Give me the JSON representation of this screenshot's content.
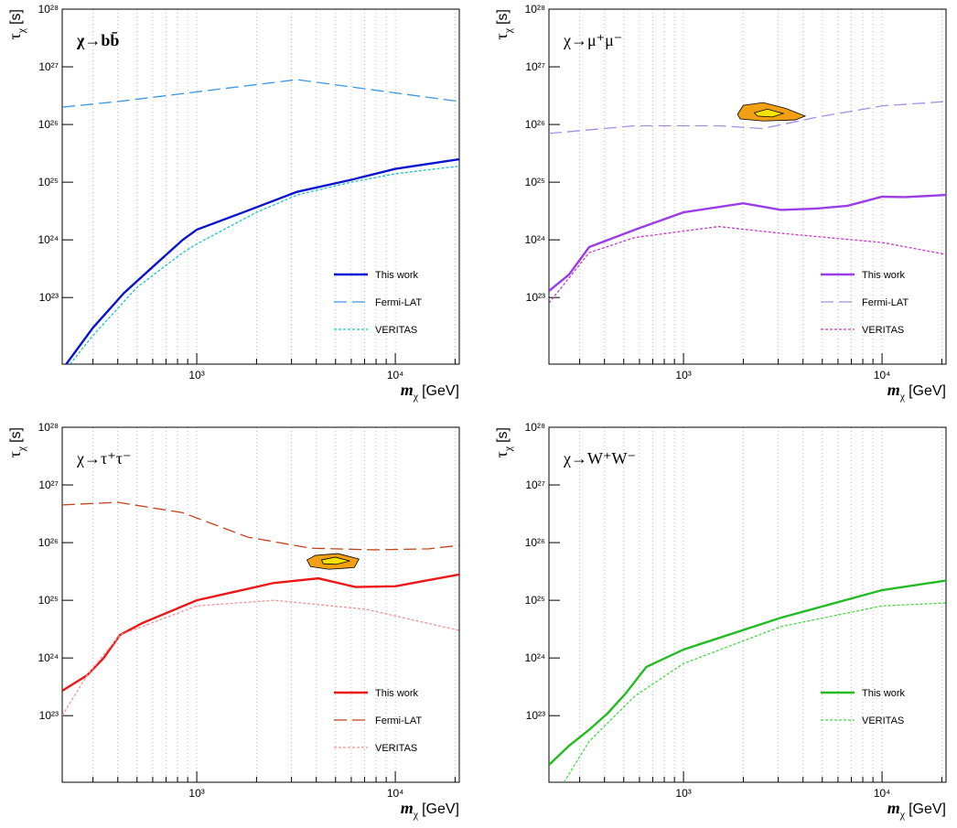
{
  "chart_data": [
    {
      "type": "line",
      "title": "χ→bb̄",
      "xlog": true,
      "ylog": true,
      "grid": "x",
      "legend": "lower right",
      "xlabel": {
        "symbol": "m",
        "sub": "χ",
        "unit": "[GeV]"
      },
      "ylabel": {
        "symbol": "τ",
        "sub": "χ",
        "unit": "[s]"
      },
      "xlim": [
        210,
        21000
      ],
      "ylim": [
        7e+21,
        1e+28
      ],
      "xticks": [
        {
          "value": 1000,
          "label": "10³"
        },
        {
          "value": 10000,
          "label": "10⁴"
        }
      ],
      "xminorticks": [
        300,
        400,
        500,
        600,
        700,
        800,
        900,
        2000,
        3000,
        4000,
        5000,
        6000,
        7000,
        8000,
        9000,
        20000
      ],
      "yticks": [
        {
          "value": 1e+23,
          "label": "10²³"
        },
        {
          "value": 1e+24,
          "label": "10²⁴"
        },
        {
          "value": 1e+25,
          "label": "10²⁵"
        },
        {
          "value": 1e+26,
          "label": "10²⁶"
        },
        {
          "value": 1e+27,
          "label": "10²⁷"
        },
        {
          "value": 1e+28,
          "label": "10²⁸"
        }
      ],
      "series": [
        {
          "name": "This work",
          "color": "#0a14d0",
          "style": "solid",
          "x": [
            220,
            300,
            430,
            600,
            850,
            1000,
            1800,
            3200,
            6000,
            10000,
            21000
          ],
          "values": [
            7e+21,
            3e+22,
            1.2e+23,
            3.4e+23,
            1e+24,
            1.5e+24,
            3.2e+24,
            6.8e+24,
            1.1e+25,
            1.7e+25,
            2.5e+25
          ]
        },
        {
          "name": "Fermi-LAT",
          "color": "#3a96e8",
          "style": "dashed",
          "x": [
            210,
            400,
            3200,
            21000
          ],
          "values": [
            2e+26,
            2.5e+26,
            6e+26,
            2.5e+26
          ]
        },
        {
          "name": "VERITAS",
          "color": "#19c2c8",
          "style": "dotted",
          "x": [
            230,
            300,
            500,
            850,
            1000,
            2000,
            3200,
            6000,
            10000,
            21000
          ],
          "values": [
            7e+21,
            2.2e+22,
            1.5e+23,
            6e+23,
            8.5e+23,
            3e+24,
            6e+24,
            1e+25,
            1.4e+25,
            1.9e+25
          ]
        }
      ]
    },
    {
      "type": "line",
      "title": "χ→μ⁺μ⁻",
      "xlog": true,
      "ylog": true,
      "grid": "x",
      "legend": "lower right",
      "xlabel": {
        "symbol": "m",
        "sub": "χ",
        "unit": "[GeV]"
      },
      "ylabel": {
        "symbol": "τ",
        "sub": "χ",
        "unit": "[s]"
      },
      "xlim": [
        210,
        21000
      ],
      "ylim": [
        7e+21,
        1e+28
      ],
      "xticks": [
        {
          "value": 1000,
          "label": "10³"
        },
        {
          "value": 10000,
          "label": "10⁴"
        }
      ],
      "xminorticks": [
        300,
        400,
        500,
        600,
        700,
        800,
        900,
        2000,
        3000,
        4000,
        5000,
        6000,
        7000,
        8000,
        9000,
        20000
      ],
      "yticks": [
        {
          "value": 1e+23,
          "label": "10²³"
        },
        {
          "value": 1e+24,
          "label": "10²⁴"
        },
        {
          "value": 1e+25,
          "label": "10²⁵"
        },
        {
          "value": 1e+26,
          "label": "10²⁶"
        },
        {
          "value": 1e+27,
          "label": "10²⁷"
        },
        {
          "value": 1e+28,
          "label": "10²⁸"
        }
      ],
      "series": [
        {
          "name": "This work",
          "color": "#9b3ce8",
          "style": "solid",
          "x": [
            210,
            265,
            335,
            570,
            1000,
            2000,
            3100,
            4750,
            6700,
            10000,
            13000,
            21000
          ],
          "values": [
            1.3e+23,
            2.5e+23,
            7.5e+23,
            1.5e+24,
            3e+24,
            4.3e+24,
            3.3e+24,
            3.5e+24,
            3.9e+24,
            5.6e+24,
            5.5e+24,
            6e+24
          ]
        },
        {
          "name": "Fermi-LAT",
          "color": "#a98ce8",
          "style": "dashed",
          "x": [
            210,
            570,
            1500,
            2500,
            4750,
            10000,
            21000
          ],
          "values": [
            7e+25,
            9.5e+25,
            9.5e+25,
            8.5e+25,
            1.35e+26,
            2.1e+26,
            2.5e+26
          ]
        },
        {
          "name": "VERITAS",
          "color": "#c83ac8",
          "style": "dotted",
          "x": [
            210,
            335,
            570,
            1500,
            3100,
            10000,
            21000
          ],
          "values": [
            8e+22,
            6e+23,
            1.1e+24,
            1.7e+24,
            1.3e+24,
            9e+23,
            5.6e+23
          ]
        }
      ],
      "regions": [
        {
          "color": "#f0a012",
          "x": [
            1870,
            2000,
            2520,
            3280,
            4100,
            3650,
            2520,
            1930
          ],
          "values": [
            1.5e+26,
            2.15e+26,
            2.4e+26,
            1.9e+26,
            1.4e+26,
            1.2e+26,
            1.15e+26,
            1.25e+26
          ]
        },
        {
          "color": "#f5e400",
          "x": [
            2270,
            2650,
            3180,
            2800,
            2360
          ],
          "values": [
            1.6e+26,
            1.85e+26,
            1.55e+26,
            1.35e+26,
            1.4e+26
          ]
        }
      ]
    },
    {
      "type": "line",
      "title": "χ→τ⁺τ⁻",
      "xlog": true,
      "ylog": true,
      "grid": "x",
      "legend": "lower right",
      "xlabel": {
        "symbol": "m",
        "sub": "χ",
        "unit": "[GeV]"
      },
      "ylabel": {
        "symbol": "τ",
        "sub": "χ",
        "unit": "[s]"
      },
      "xlim": [
        210,
        21000
      ],
      "ylim": [
        7e+21,
        1e+28
      ],
      "xticks": [
        {
          "value": 1000,
          "label": "10³"
        },
        {
          "value": 10000,
          "label": "10⁴"
        }
      ],
      "xminorticks": [
        300,
        400,
        500,
        600,
        700,
        800,
        900,
        2000,
        3000,
        4000,
        5000,
        6000,
        7000,
        8000,
        9000,
        20000
      ],
      "yticks": [
        {
          "value": 1e+23,
          "label": "10²³"
        },
        {
          "value": 1e+24,
          "label": "10²⁴"
        },
        {
          "value": 1e+25,
          "label": "10²⁵"
        },
        {
          "value": 1e+26,
          "label": "10²⁶"
        },
        {
          "value": 1e+27,
          "label": "10²⁷"
        },
        {
          "value": 1e+28,
          "label": "10²⁸"
        }
      ],
      "series": [
        {
          "name": "This work",
          "color": "#ec1616",
          "style": "solid",
          "x": [
            210,
            280,
            340,
            410,
            530,
            1000,
            2450,
            4100,
            6300,
            10000,
            13300,
            21000
          ],
          "values": [
            2.7e+23,
            5e+23,
            1e+24,
            2.5e+24,
            4e+24,
            1e+25,
            2e+25,
            2.4e+25,
            1.7e+25,
            1.75e+25,
            2.1e+25,
            2.8e+25
          ]
        },
        {
          "name": "Fermi-LAT",
          "color": "#c8401a",
          "style": "dashed",
          "x": [
            210,
            400,
            850,
            1800,
            3750,
            7800,
            14800,
            21000
          ],
          "values": [
            4.5e+26,
            5e+26,
            3.3e+26,
            1.25e+26,
            8e+25,
            7.5e+25,
            7.8e+25,
            9e+25
          ]
        },
        {
          "name": "VERITAS",
          "color": "#f09494",
          "style": "dotted",
          "x": [
            210,
            220,
            280,
            410,
            1000,
            2450,
            7100,
            21000
          ],
          "values": [
            1e+23,
            1.3e+23,
            5e+23,
            2.5e+24,
            8e+24,
            1e+25,
            7e+24,
            3e+24
          ]
        }
      ],
      "regions": [
        {
          "color": "#f0a012",
          "x": [
            3590,
            3950,
            5140,
            6560,
            6220,
            4630,
            3740
          ],
          "values": [
            5e+25,
            6e+25,
            6.45e+25,
            5.2e+25,
            3.7e+25,
            3.45e+25,
            3.85e+25
          ]
        },
        {
          "color": "#f5e400",
          "x": [
            4250,
            4980,
            5900,
            5030,
            4340
          ],
          "values": [
            5e+25,
            5.6e+25,
            4.8e+25,
            4.2e+25,
            4.3e+25
          ]
        }
      ]
    },
    {
      "type": "line",
      "title": "χ→W⁺W⁻",
      "xlog": true,
      "ylog": true,
      "grid": "x",
      "legend": "lower right",
      "xlabel": {
        "symbol": "m",
        "sub": "χ",
        "unit": "[GeV]"
      },
      "ylabel": {
        "symbol": "τ",
        "sub": "χ",
        "unit": "[s]"
      },
      "xlim": [
        210,
        21000
      ],
      "ylim": [
        7e+21,
        1e+28
      ],
      "xticks": [
        {
          "value": 1000,
          "label": "10³"
        },
        {
          "value": 10000,
          "label": "10⁴"
        }
      ],
      "xminorticks": [
        300,
        400,
        500,
        600,
        700,
        800,
        900,
        2000,
        3000,
        4000,
        5000,
        6000,
        7000,
        8000,
        9000,
        20000
      ],
      "yticks": [
        {
          "value": 1e+23,
          "label": "10²³"
        },
        {
          "value": 1e+24,
          "label": "10²⁴"
        },
        {
          "value": 1e+25,
          "label": "10²⁵"
        },
        {
          "value": 1e+26,
          "label": "10²⁶"
        },
        {
          "value": 1e+27,
          "label": "10²⁷"
        },
        {
          "value": 1e+28,
          "label": "10²⁸"
        }
      ],
      "series": [
        {
          "name": "This work",
          "color": "#22bb22",
          "style": "solid",
          "x": [
            210,
            265,
            335,
            415,
            510,
            650,
            1000,
            3100,
            10000,
            21000
          ],
          "values": [
            1.4e+22,
            3e+22,
            5.7e+22,
            1.1e+23,
            2.4e+23,
            7e+23,
            1.4e+24,
            5e+24,
            1.5e+25,
            2.2e+25
          ]
        },
        {
          "name": "VERITAS",
          "color": "#44d844",
          "style": "dotted",
          "x": [
            250,
            335,
            570,
            1000,
            3100,
            10000,
            21000
          ],
          "values": [
            7e+21,
            3.6e+22,
            2.2e+23,
            8e+23,
            3.5e+24,
            8e+24,
            9e+24
          ]
        }
      ]
    }
  ]
}
